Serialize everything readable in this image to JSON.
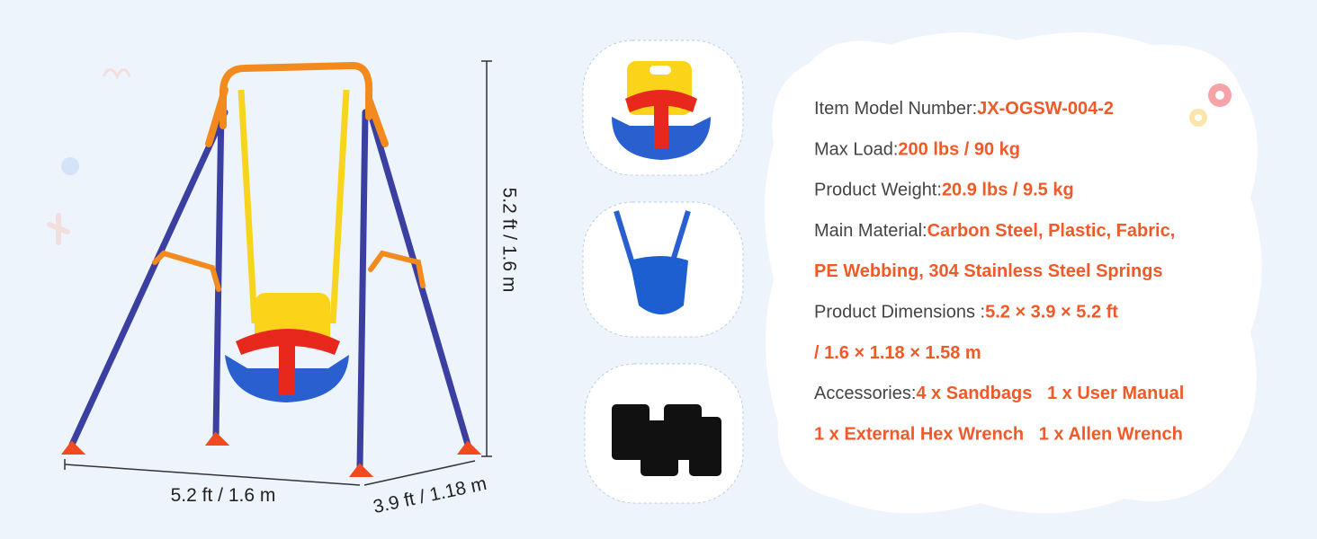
{
  "dimensions": {
    "height": "5.2 ft / 1.6 m",
    "width": "5.2 ft / 1.6 m",
    "depth": "3.9 ft / 1.18 m"
  },
  "specs": {
    "lines": [
      {
        "label": "Item Model Number:",
        "value": "JX-OGSW-004-2"
      },
      {
        "label": "Max Load:",
        "value": "200 lbs / 90 kg"
      },
      {
        "label": "Product Weight:",
        "value": "20.9 lbs / 9.5 kg"
      },
      {
        "label": "Main Material:",
        "value": "Carbon Steel, Plastic, Fabric,"
      },
      {
        "value": "PE Webbing, 304 Stainless Steel Springs"
      },
      {
        "label": "Product Dimensions :",
        "value": "5.2 × 3.9 × 5.2 ft"
      },
      {
        "value": "/ 1.6 × 1.18 × 1.58 m"
      },
      {
        "label": "Accessories:",
        "value": "4 x Sandbags   1 x User Manual"
      },
      {
        "value": "1 x External Hex Wrench   1 x Allen Wrench"
      }
    ]
  }
}
